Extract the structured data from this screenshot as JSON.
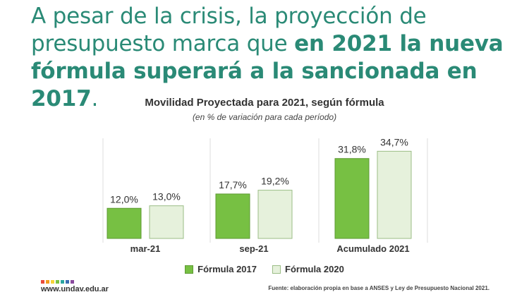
{
  "headline": {
    "line1": "A pesar de la crisis, la proyección de",
    "line2_plain": "presupuesto marca que ",
    "line2_bold": "en 2021 la nueva",
    "line3_bold": "fórmula superará a la sancionada en 2017",
    "line3_tail": "."
  },
  "chart_data": {
    "type": "bar",
    "title": "Movilidad Proyectada para 2021, según fórmula",
    "subtitle": "(en % de variación para cada período)",
    "categories": [
      "mar-21",
      "sep-21",
      "Acumulado 2021"
    ],
    "series": [
      {
        "name": "Fórmula 2017",
        "values": [
          12.0,
          17.7,
          31.8
        ],
        "labels": [
          "12,0%",
          "17,7%",
          "31,8%"
        ],
        "color": "#77c043",
        "stroke": "#5e9a33"
      },
      {
        "name": "Fórmula 2020",
        "values": [
          13.0,
          19.2,
          34.7
        ],
        "labels": [
          "13,0%",
          "19,2%",
          "34,7%"
        ],
        "color": "#e6f1dc",
        "stroke": "#9bbd86"
      }
    ],
    "ylim": [
      0,
      40
    ],
    "grid": false,
    "legend": "bottom"
  },
  "footer": {
    "logo_text": "www.undav.edu.ar",
    "logo_colors": [
      "#e94b3c",
      "#f29c1f",
      "#f7d33a",
      "#7ac143",
      "#2aa6a1",
      "#3b6db3",
      "#8a4a9e"
    ],
    "source": "Fuente: elaboración propia en base a ANSES y Ley de Presupuesto Nacional 2021."
  },
  "colors": {
    "headline": "#2a8a76",
    "separator": "#dcdcdc"
  }
}
